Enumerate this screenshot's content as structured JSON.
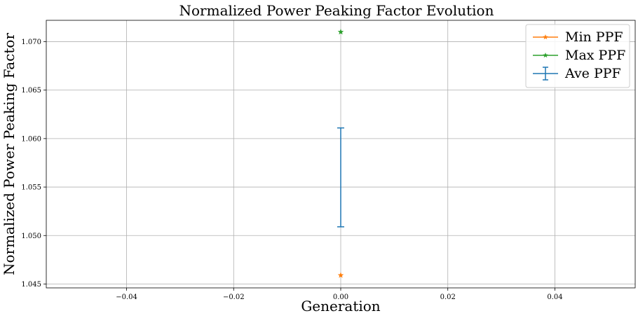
{
  "chart_data": {
    "type": "scatter",
    "title": "Normalized Power Peaking Factor Evolution",
    "xlabel": "Generation",
    "ylabel": "Normalized Power Peaking Factor",
    "xlim": [
      -0.055,
      0.055
    ],
    "ylim": [
      1.0446,
      1.0722
    ],
    "x_ticks": [
      -0.04,
      -0.02,
      0.0,
      0.02,
      0.04
    ],
    "x_tick_labels": [
      "−0.04",
      "−0.02",
      "0.00",
      "0.02",
      "0.04"
    ],
    "y_ticks": [
      1.045,
      1.05,
      1.055,
      1.06,
      1.065,
      1.07
    ],
    "y_tick_labels": [
      "1.045",
      "1.050",
      "1.055",
      "1.060",
      "1.065",
      "1.070"
    ],
    "grid": true,
    "legend_position": "top-right",
    "series": [
      {
        "name": "Min PPF",
        "kind": "line-star",
        "color": "#ff7f0e",
        "x": [
          0.0
        ],
        "y": [
          1.0459
        ]
      },
      {
        "name": "Max PPF",
        "kind": "line-star",
        "color": "#2ca02c",
        "x": [
          0.0
        ],
        "y": [
          1.071
        ]
      },
      {
        "name": "Ave PPF",
        "kind": "errorbar",
        "color": "#1f77b4",
        "x": [
          0.0
        ],
        "y": [
          1.056
        ],
        "yerr": [
          0.0051
        ]
      }
    ]
  }
}
